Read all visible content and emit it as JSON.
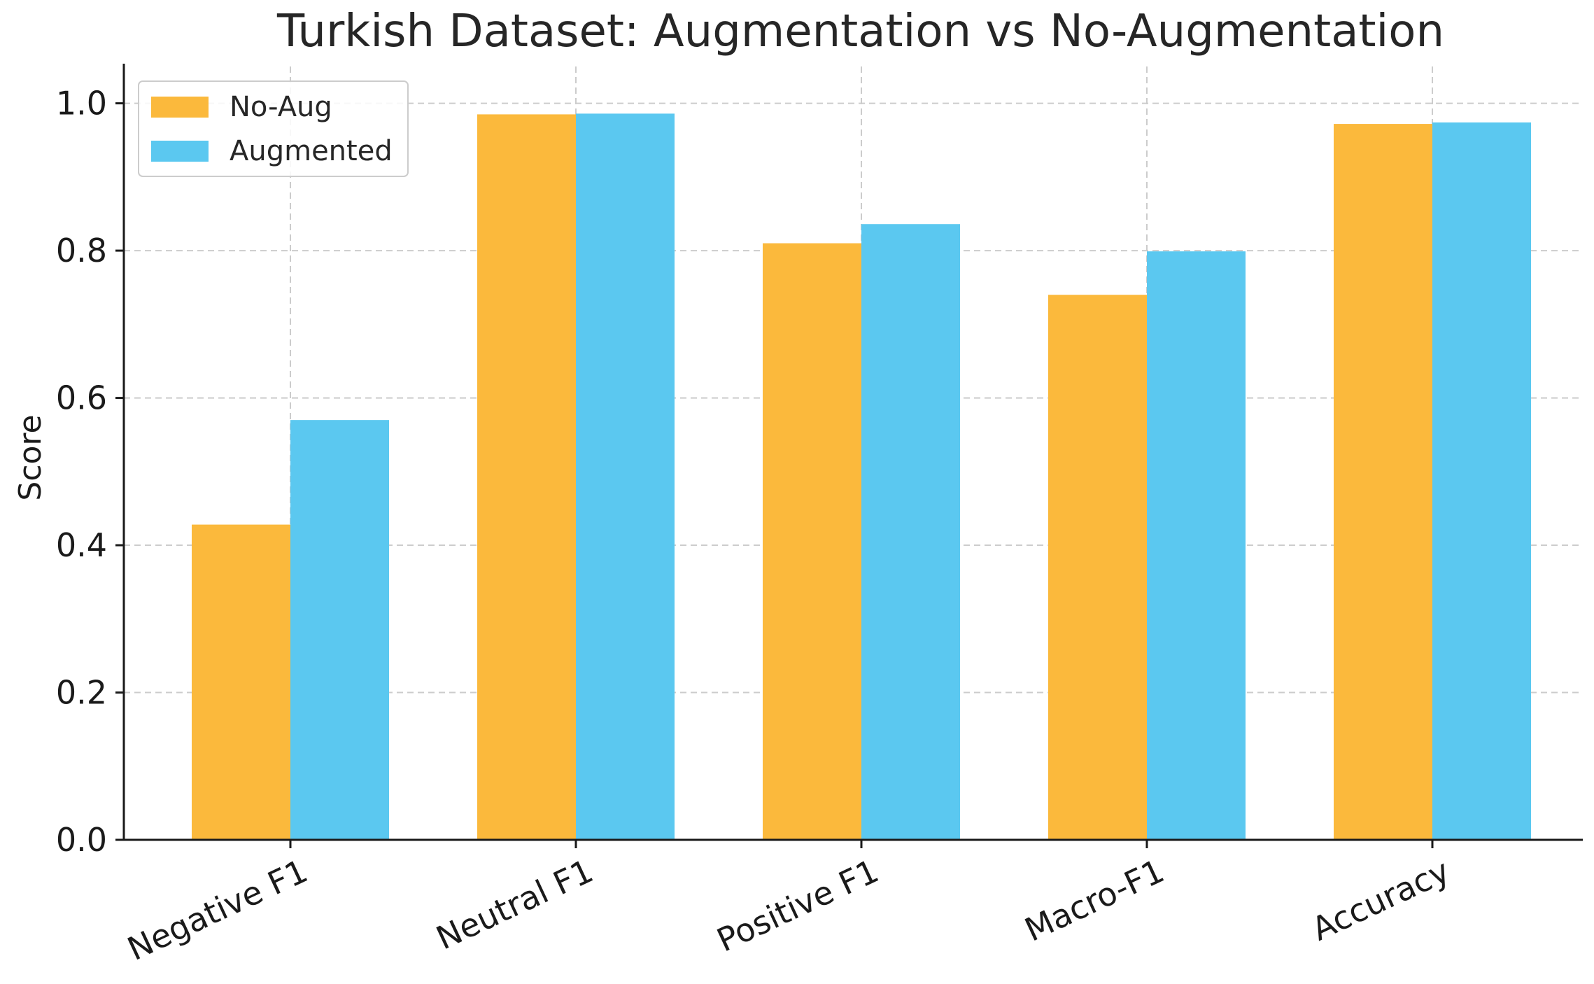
{
  "chart_data": {
    "type": "bar",
    "title": "Turkish Dataset: Augmentation vs No-Augmentation",
    "xlabel": "",
    "ylabel": "Score",
    "ylim": [
      0,
      1.05
    ],
    "yticks": [
      "0.0",
      "0.2",
      "0.4",
      "0.6",
      "0.8",
      "1.0"
    ],
    "categories": [
      "Negative F1",
      "Neutral F1",
      "Positive F1",
      "Macro-F1",
      "Accuracy"
    ],
    "series": [
      {
        "name": "No-Aug",
        "color": "#FBB93C",
        "values": [
          0.428,
          0.985,
          0.81,
          0.74,
          0.972
        ]
      },
      {
        "name": "Augmented",
        "color": "#5BC8F0",
        "values": [
          0.57,
          0.986,
          0.836,
          0.799,
          0.974
        ]
      }
    ],
    "grid": true,
    "legend_position": "top-left"
  }
}
